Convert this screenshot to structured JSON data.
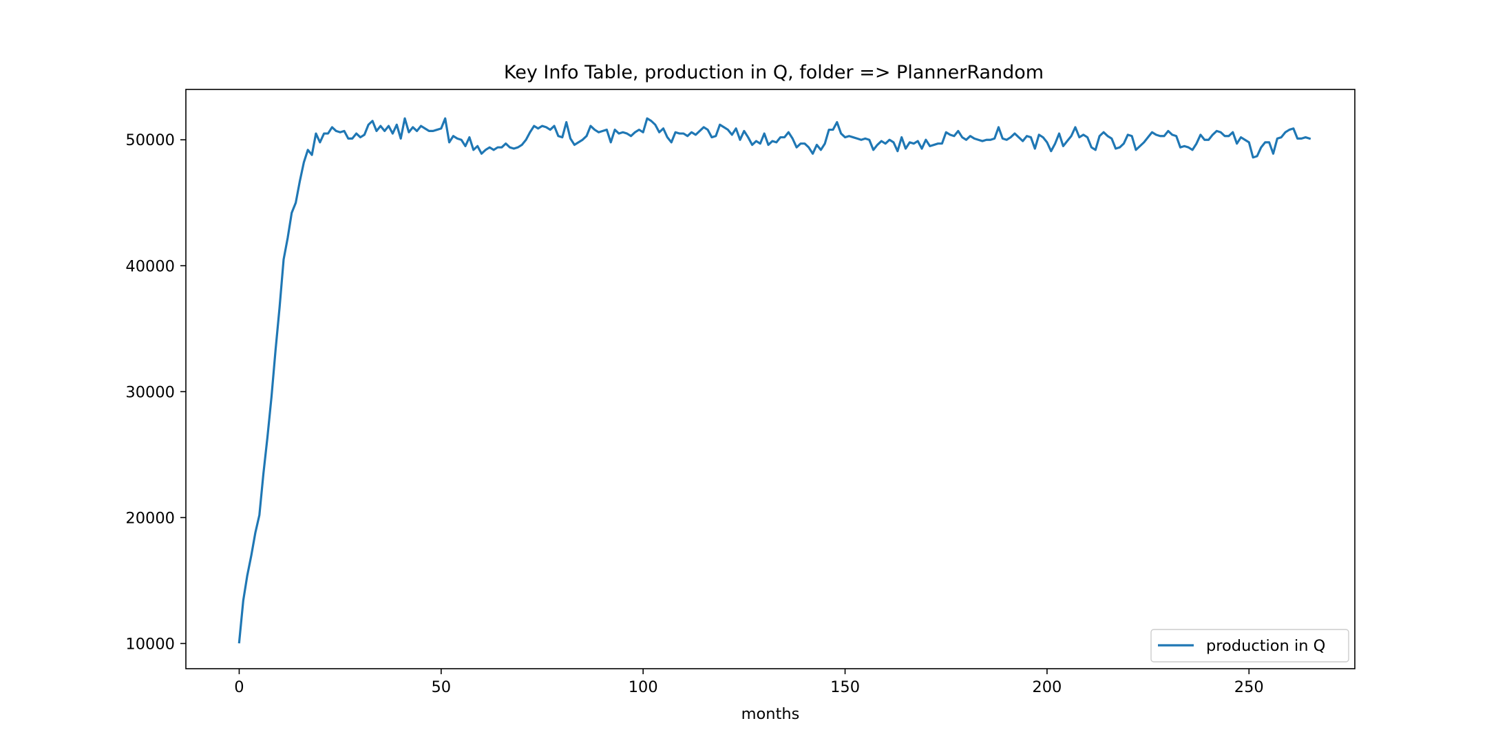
{
  "colors": {
    "series_line": "#1f77b4",
    "axes": "#000000",
    "background": "#ffffff",
    "legend_border": "#cccccc"
  },
  "chart_data": {
    "type": "line",
    "title": "Key Info Table, production in Q, folder => PlannerRandom",
    "xlabel": "months",
    "ylabel": "",
    "xlim": [
      -13.2,
      276.2
    ],
    "ylim": [
      8000,
      54000
    ],
    "xticks": [
      0,
      50,
      100,
      150,
      200,
      250
    ],
    "yticks": [
      10000,
      20000,
      30000,
      40000,
      50000
    ],
    "grid": false,
    "legend_position": "lower right",
    "series": [
      {
        "name": "production in Q",
        "values": [
          10100,
          13400,
          15400,
          17000,
          18800,
          20200,
          23500,
          26400,
          29600,
          33300,
          36700,
          40500,
          42200,
          44200,
          45000,
          46700,
          48200,
          49200,
          48800,
          50500,
          49800,
          50500,
          50500,
          51000,
          50700,
          50600,
          50700,
          50100,
          50100,
          50500,
          50200,
          50400,
          51200,
          51500,
          50700,
          51100,
          50700,
          51100,
          50500,
          51200,
          50100,
          51700,
          50600,
          51000,
          50700,
          51100,
          50900,
          50700,
          50700,
          50800,
          50900,
          51700,
          49800,
          50300,
          50100,
          50000,
          49500,
          50200,
          49200,
          49500,
          48900,
          49200,
          49400,
          49200,
          49400,
          49400,
          49700,
          49400,
          49300,
          49400,
          49600,
          50000,
          50600,
          51100,
          50900,
          51100,
          51000,
          50800,
          51100,
          50300,
          50200,
          51400,
          50100,
          49600,
          49800,
          50000,
          50300,
          51100,
          50800,
          50600,
          50700,
          50800,
          49800,
          50800,
          50500,
          50600,
          50500,
          50300,
          50600,
          50800,
          50600,
          51700,
          51500,
          51200,
          50600,
          50900,
          50200,
          49800,
          50600,
          50500,
          50500,
          50300,
          50600,
          50400,
          50700,
          51000,
          50800,
          50200,
          50300,
          51200,
          51000,
          50800,
          50400,
          50900,
          50000,
          50700,
          50200,
          49600,
          49900,
          49700,
          50500,
          49600,
          49900,
          49800,
          50200,
          50200,
          50600,
          50100,
          49400,
          49700,
          49700,
          49400,
          48900,
          49600,
          49200,
          49700,
          50800,
          50800,
          51400,
          50500,
          50200,
          50300,
          50200,
          50100,
          50000,
          50100,
          50000,
          49200,
          49600,
          49900,
          49700,
          50000,
          49800,
          49100,
          50200,
          49300,
          49800,
          49700,
          49900,
          49300,
          50000,
          49500,
          49600,
          49700,
          49700,
          50600,
          50400,
          50300,
          50700,
          50200,
          50000,
          50300,
          50100,
          50000,
          49900,
          50000,
          50000,
          50100,
          51000,
          50100,
          50000,
          50200,
          50500,
          50200,
          49900,
          50300,
          50200,
          49300,
          50400,
          50200,
          49800,
          49100,
          49700,
          50500,
          49500,
          49900,
          50300,
          51000,
          50200,
          50400,
          50200,
          49400,
          49200,
          50300,
          50600,
          50300,
          50100,
          49300,
          49400,
          49700,
          50400,
          50300,
          49200,
          49500,
          49800,
          50200,
          50600,
          50400,
          50300,
          50300,
          50700,
          50400,
          50300,
          49400,
          49500,
          49400,
          49200,
          49700,
          50400,
          50000,
          50000,
          50400,
          50700,
          50600,
          50300,
          50300,
          50600,
          49700,
          50200,
          50000,
          49800,
          48600,
          48700,
          49400,
          49800,
          49800,
          48900,
          50100,
          50200,
          50600,
          50800,
          50900,
          50100,
          50100,
          50200,
          50100
        ]
      }
    ]
  }
}
